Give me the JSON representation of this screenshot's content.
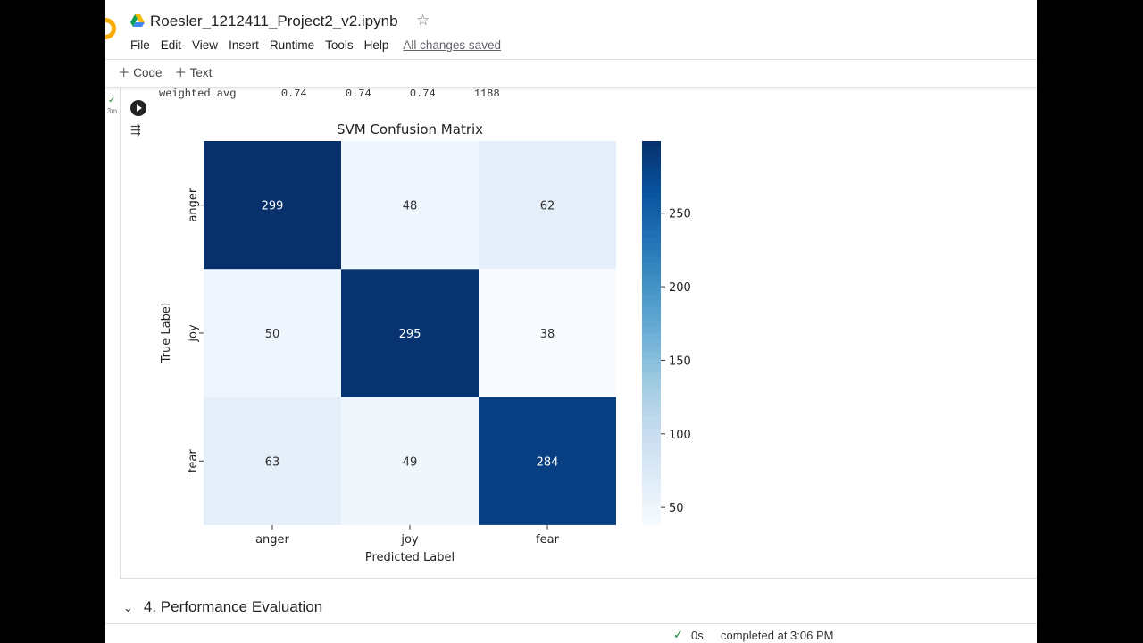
{
  "header": {
    "title": "Roesler_1212411_Project2_v2.ipynb",
    "menu": [
      "File",
      "Edit",
      "View",
      "Insert",
      "Runtime",
      "Tools",
      "Help"
    ],
    "saved": "All changes saved"
  },
  "toolbar": {
    "code": "Code",
    "text": "Text"
  },
  "output": {
    "line": "weighted avg       0.74      0.74      0.74      1188",
    "exec_time": "3m"
  },
  "chart_data": {
    "type": "heatmap",
    "title": "SVM Confusion Matrix",
    "xlabel": "Predicted Label",
    "ylabel": "True Label",
    "x_categories": [
      "anger",
      "joy",
      "fear"
    ],
    "y_categories": [
      "anger",
      "joy",
      "fear"
    ],
    "values": [
      [
        299,
        48,
        62
      ],
      [
        50,
        295,
        38
      ],
      [
        63,
        49,
        284
      ]
    ],
    "colormap": "Blues",
    "colorbar_range": [
      38,
      299
    ],
    "colorbar_ticks": [
      50,
      100,
      150,
      200,
      250
    ]
  },
  "section": {
    "label": "4. Performance Evaluation"
  },
  "status": {
    "time": "0s",
    "completed": "completed at 3:06 PM"
  }
}
